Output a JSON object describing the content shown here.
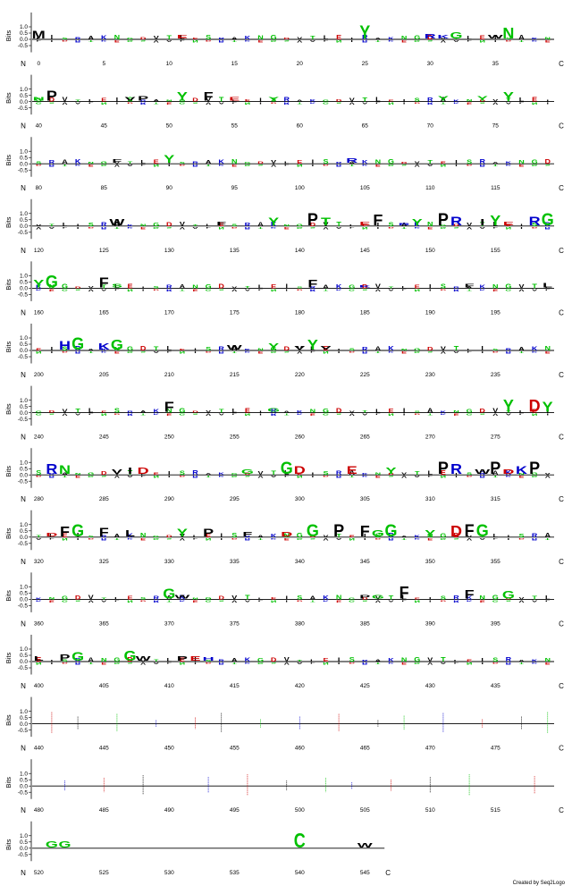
{
  "chart_data": {
    "type": "sequence_logo",
    "ylabel": "Bits",
    "y_ticks": [
      "1.0",
      "0.5",
      "0.0",
      "-0.5"
    ],
    "ylim": [
      -0.8,
      1.5
    ],
    "n_terminus_label": "N",
    "c_terminus_label": "C",
    "positions_per_row": 40,
    "total_positions": 547,
    "color_scheme": {
      "hydrophobic": "#000000",
      "polar": "#00c000",
      "basic": "#0000cc",
      "acidic": "#cc0000"
    },
    "rows": [
      {
        "start": 0,
        "tick_labels": [
          "0",
          "5",
          "10",
          "15",
          "20",
          "25",
          "30",
          "35"
        ],
        "letters": [
          {
            "pos": 0,
            "res": "M",
            "bits": 0.6
          },
          {
            "pos": 11,
            "res": "E",
            "bits": 0.3
          },
          {
            "pos": 25,
            "res": "Y",
            "bits": 1.1
          },
          {
            "pos": 30,
            "res": "R",
            "bits": 0.4
          },
          {
            "pos": 31,
            "res": "K",
            "bits": 0.3
          },
          {
            "pos": 32,
            "res": "G",
            "bits": 0.5
          },
          {
            "pos": 35,
            "res": "W",
            "bits": 0.3
          },
          {
            "pos": 36,
            "res": "N",
            "bits": 0.9
          }
        ]
      },
      {
        "start": 40,
        "tick_labels": [
          "40",
          "45",
          "50",
          "55",
          "60",
          "65",
          "70",
          "75"
        ],
        "letters": [
          {
            "pos": 40,
            "res": "N",
            "bits": 0.3
          },
          {
            "pos": 41,
            "res": "P",
            "bits": 0.8
          },
          {
            "pos": 47,
            "res": "V",
            "bits": 0.3
          },
          {
            "pos": 48,
            "res": "P",
            "bits": 0.4
          },
          {
            "pos": 51,
            "res": "Y",
            "bits": 0.7
          },
          {
            "pos": 53,
            "res": "F",
            "bits": 0.7
          },
          {
            "pos": 55,
            "res": "E",
            "bits": 0.3
          },
          {
            "pos": 58,
            "res": "Y",
            "bits": 0.3
          },
          {
            "pos": 71,
            "res": "Y",
            "bits": 0.4
          },
          {
            "pos": 74,
            "res": "Y",
            "bits": 0.4
          },
          {
            "pos": 76,
            "res": "Y",
            "bits": 0.7
          }
        ]
      },
      {
        "start": 80,
        "tick_labels": [
          "80",
          "85",
          "90",
          "95",
          "100",
          "105",
          "110",
          "115"
        ],
        "letters": [
          {
            "pos": 86,
            "res": "F",
            "bits": 0.3
          },
          {
            "pos": 90,
            "res": "Y",
            "bits": 0.6
          },
          {
            "pos": 104,
            "res": "R",
            "bits": 0.4
          }
        ]
      },
      {
        "start": 120,
        "tick_labels": [
          "120",
          "125",
          "130",
          "135",
          "140",
          "145",
          "150",
          "155"
        ],
        "letters": [
          {
            "pos": 126,
            "res": "W",
            "bits": 0.5
          },
          {
            "pos": 134,
            "res": "F",
            "bits": 0.3
          },
          {
            "pos": 138,
            "res": "Y",
            "bits": 0.6
          },
          {
            "pos": 141,
            "res": "P",
            "bits": 1.0
          },
          {
            "pos": 142,
            "res": "T",
            "bits": 0.6
          },
          {
            "pos": 145,
            "res": "E",
            "bits": 0.3
          },
          {
            "pos": 146,
            "res": "F",
            "bits": 0.9
          },
          {
            "pos": 148,
            "res": "R",
            "bits": 0.2
          },
          {
            "pos": 149,
            "res": "Y",
            "bits": 0.5
          },
          {
            "pos": 151,
            "res": "P",
            "bits": 1.0
          },
          {
            "pos": 152,
            "res": "R",
            "bits": 0.7
          },
          {
            "pos": 154,
            "res": "I",
            "bits": 0.5
          },
          {
            "pos": 155,
            "res": "Y",
            "bits": 0.8
          },
          {
            "pos": 156,
            "res": "E",
            "bits": 0.3
          },
          {
            "pos": 158,
            "res": "R",
            "bits": 0.7
          },
          {
            "pos": 159,
            "res": "G",
            "bits": 1.0
          }
        ]
      },
      {
        "start": 160,
        "tick_labels": [
          "160",
          "165",
          "170",
          "175",
          "180",
          "185",
          "190",
          "195"
        ],
        "letters": [
          {
            "pos": 160,
            "res": "Y",
            "bits": 0.6
          },
          {
            "pos": 161,
            "res": "G",
            "bits": 1.0
          },
          {
            "pos": 165,
            "res": "F",
            "bits": 0.8
          },
          {
            "pos": 166,
            "res": "S",
            "bits": 0.3
          },
          {
            "pos": 181,
            "res": "F",
            "bits": 0.6
          },
          {
            "pos": 185,
            "res": "K",
            "bits": 0.2
          },
          {
            "pos": 193,
            "res": "F",
            "bits": 0.3
          },
          {
            "pos": 199,
            "res": "L",
            "bits": 0.4
          }
        ]
      },
      {
        "start": 200,
        "tick_labels": [
          "200",
          "205",
          "210",
          "215",
          "220",
          "225",
          "230",
          "235"
        ],
        "letters": [
          {
            "pos": 202,
            "res": "H",
            "bits": 0.7
          },
          {
            "pos": 203,
            "res": "G",
            "bits": 1.0
          },
          {
            "pos": 205,
            "res": "K",
            "bits": 0.5
          },
          {
            "pos": 206,
            "res": "G",
            "bits": 0.8
          },
          {
            "pos": 215,
            "res": "W",
            "bits": 0.4
          },
          {
            "pos": 218,
            "res": "Y",
            "bits": 0.5
          },
          {
            "pos": 220,
            "res": "V",
            "bits": 0.3
          },
          {
            "pos": 221,
            "res": "Y",
            "bits": 0.8
          },
          {
            "pos": 222,
            "res": "V",
            "bits": 0.3
          }
        ]
      },
      {
        "start": 240,
        "tick_labels": [
          "240",
          "245",
          "250",
          "255",
          "260",
          "265",
          "270",
          "275"
        ],
        "letters": [
          {
            "pos": 250,
            "res": "F",
            "bits": 0.8
          },
          {
            "pos": 258,
            "res": "G",
            "bits": 0.3
          },
          {
            "pos": 276,
            "res": "Y",
            "bits": 1.0
          },
          {
            "pos": 278,
            "res": "D",
            "bits": 1.0
          },
          {
            "pos": 279,
            "res": "Y",
            "bits": 0.8
          }
        ]
      },
      {
        "start": 280,
        "tick_labels": [
          "280",
          "285",
          "290",
          "295",
          "300",
          "305",
          "310",
          "315"
        ],
        "letters": [
          {
            "pos": 281,
            "res": "R",
            "bits": 0.8
          },
          {
            "pos": 282,
            "res": "N",
            "bits": 0.7
          },
          {
            "pos": 286,
            "res": "V",
            "bits": 0.4
          },
          {
            "pos": 287,
            "res": "I",
            "bits": 0.5
          },
          {
            "pos": 288,
            "res": "D",
            "bits": 0.5
          },
          {
            "pos": 296,
            "res": "G",
            "bits": 0.4
          },
          {
            "pos": 299,
            "res": "G",
            "bits": 1.0
          },
          {
            "pos": 300,
            "res": "D",
            "bits": 0.6
          },
          {
            "pos": 304,
            "res": "E",
            "bits": 0.6
          },
          {
            "pos": 307,
            "res": "Y",
            "bits": 0.5
          },
          {
            "pos": 311,
            "res": "P",
            "bits": 1.0
          },
          {
            "pos": 312,
            "res": "R",
            "bits": 0.8
          },
          {
            "pos": 314,
            "res": "W",
            "bits": 0.4
          },
          {
            "pos": 315,
            "res": "P",
            "bits": 1.0
          },
          {
            "pos": 316,
            "res": "D",
            "bits": 0.4
          },
          {
            "pos": 317,
            "res": "K",
            "bits": 0.6
          },
          {
            "pos": 318,
            "res": "P",
            "bits": 1.0
          }
        ]
      },
      {
        "start": 320,
        "tick_labels": [
          "320",
          "325",
          "330",
          "335",
          "340",
          "345",
          "350",
          "355"
        ],
        "letters": [
          {
            "pos": 321,
            "res": "D",
            "bits": 0.3
          },
          {
            "pos": 322,
            "res": "F",
            "bits": 0.8
          },
          {
            "pos": 323,
            "res": "G",
            "bits": 1.0
          },
          {
            "pos": 325,
            "res": "F",
            "bits": 0.7
          },
          {
            "pos": 327,
            "res": "L",
            "bits": 0.5
          },
          {
            "pos": 331,
            "res": "Y",
            "bits": 0.6
          },
          {
            "pos": 333,
            "res": "P",
            "bits": 0.6
          },
          {
            "pos": 336,
            "res": "F",
            "bits": 0.4
          },
          {
            "pos": 339,
            "res": "D",
            "bits": 0.4
          },
          {
            "pos": 341,
            "res": "G",
            "bits": 1.0
          },
          {
            "pos": 343,
            "res": "P",
            "bits": 1.0
          },
          {
            "pos": 345,
            "res": "F",
            "bits": 0.9
          },
          {
            "pos": 346,
            "res": "G",
            "bits": 0.5
          },
          {
            "pos": 347,
            "res": "G",
            "bits": 1.0
          },
          {
            "pos": 350,
            "res": "Y",
            "bits": 0.5
          },
          {
            "pos": 352,
            "res": "D",
            "bits": 0.9
          },
          {
            "pos": 353,
            "res": "F",
            "bits": 1.0
          },
          {
            "pos": 354,
            "res": "G",
            "bits": 1.0
          }
        ]
      },
      {
        "start": 360,
        "tick_labels": [
          "360",
          "365",
          "370",
          "375",
          "380",
          "385",
          "390",
          "395"
        ],
        "letters": [
          {
            "pos": 370,
            "res": "G",
            "bits": 0.8
          },
          {
            "pos": 371,
            "res": "W",
            "bits": 0.3
          },
          {
            "pos": 385,
            "res": "P",
            "bits": 0.3
          },
          {
            "pos": 386,
            "res": "G",
            "bits": 0.3
          },
          {
            "pos": 388,
            "res": "F",
            "bits": 1.0
          },
          {
            "pos": 393,
            "res": "F",
            "bits": 0.7
          },
          {
            "pos": 396,
            "res": "G",
            "bits": 0.6
          }
        ]
      },
      {
        "start": 400,
        "tick_labels": [
          "400",
          "405",
          "410",
          "415",
          "420",
          "425",
          "430",
          "435"
        ],
        "letters": [
          {
            "pos": 400,
            "res": "L",
            "bits": 0.4
          },
          {
            "pos": 402,
            "res": "P",
            "bits": 0.5
          },
          {
            "pos": 403,
            "res": "G",
            "bits": 0.7
          },
          {
            "pos": 407,
            "res": "G",
            "bits": 0.8
          },
          {
            "pos": 408,
            "res": "W",
            "bits": 0.4
          },
          {
            "pos": 411,
            "res": "P",
            "bits": 0.4
          },
          {
            "pos": 412,
            "res": "E",
            "bits": 0.4
          },
          {
            "pos": 413,
            "res": "H",
            "bits": 0.3
          }
        ]
      },
      {
        "start": 440,
        "tick_labels": [
          "440",
          "445",
          "450",
          "455",
          "460",
          "465",
          "470",
          "475"
        ],
        "letters": []
      },
      {
        "start": 480,
        "tick_labels": [
          "480",
          "485",
          "490",
          "495",
          "500",
          "505",
          "510",
          "515"
        ],
        "letters": []
      },
      {
        "start": 520,
        "tick_labels": [
          "520",
          "525",
          "530",
          "535",
          "540",
          "545"
        ],
        "letters": [
          {
            "pos": 521,
            "res": "G",
            "bits": 0.5
          },
          {
            "pos": 522,
            "res": "G",
            "bits": 0.5
          },
          {
            "pos": 540,
            "res": "C",
            "bits": 1.2
          },
          {
            "pos": 545,
            "res": "W",
            "bits": 0.4
          }
        ]
      }
    ]
  },
  "footer": {
    "credit": "Created by Seq2Logo"
  }
}
